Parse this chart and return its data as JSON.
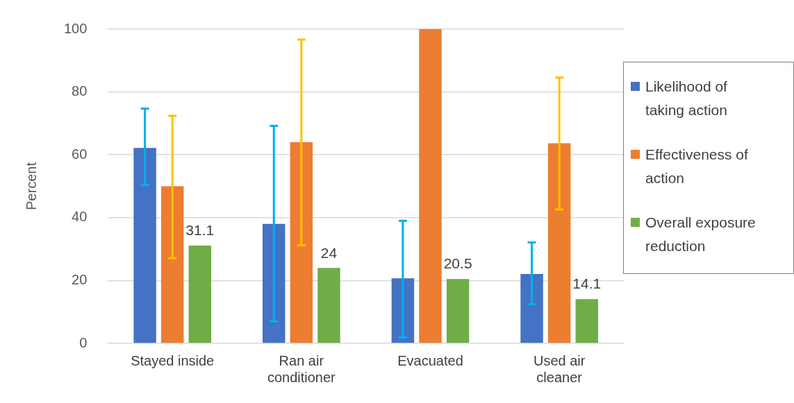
{
  "chart_data": {
    "type": "bar",
    "ylabel": "Percent",
    "categories": [
      "Stayed inside",
      "Ran air conditioner",
      "Evacuated",
      "Used air cleaner"
    ],
    "series": [
      {
        "name": "Likelihood of taking action",
        "color": "#4472c4",
        "values": [
          62.2,
          38.0,
          20.7,
          22.1
        ],
        "errors": [
          [
            50.4,
            74.7
          ],
          [
            7.0,
            69.2
          ],
          [
            1.9,
            39.0
          ],
          [
            12.4,
            32.1
          ]
        ]
      },
      {
        "name": "Effectiveness of action",
        "color": "#ed7d31",
        "values": [
          50.0,
          64.0,
          100,
          63.7
        ],
        "errors": [
          [
            27.1,
            72.4
          ],
          [
            31.2,
            96.7
          ],
          null,
          [
            42.6,
            84.6
          ]
        ]
      },
      {
        "name": "Overall exposure reduction",
        "color": "#70ad47",
        "values": [
          31.1,
          24,
          20.5,
          14.1
        ],
        "value_labels": [
          "31.1",
          "24",
          "20.5",
          "14.1"
        ]
      }
    ],
    "ylim": [
      0,
      100
    ],
    "yticks": [
      0,
      20,
      40,
      60,
      80,
      100
    ],
    "grid": "y",
    "legend": "right"
  }
}
